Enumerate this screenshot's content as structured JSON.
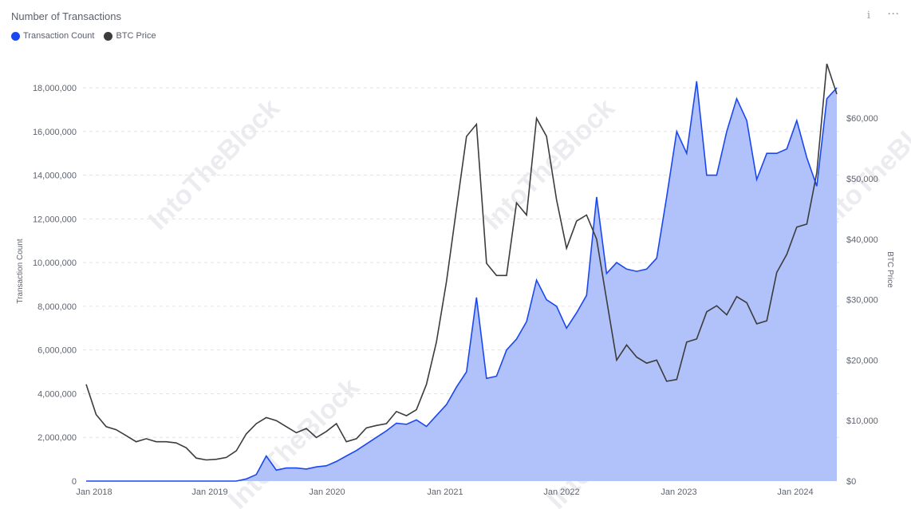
{
  "header": {
    "title": "Number of Transactions",
    "info_icon": "info-icon",
    "menu_icon": "more-horizontal-icon"
  },
  "legend": [
    {
      "label": "Transaction Count",
      "color": "#1a47f0"
    },
    {
      "label": "BTC Price",
      "color": "#3c3c3c"
    }
  ],
  "watermark": "IntoTheBlock",
  "colors": {
    "tx_line": "#1a47f0",
    "tx_fill": "#b1c1fa",
    "price_line": "#3c3c3c",
    "grid": "#e3e3e8"
  },
  "chart_data": {
    "type": "area+line",
    "title": "Number of Transactions",
    "xlabel": "",
    "ylabel_left": "Transaction Count",
    "ylabel_right": "BTC Price",
    "ylim_left": [
      0,
      18000000
    ],
    "ylim_right": [
      0,
      65000
    ],
    "yticks_left": [
      "0",
      "2,000,000",
      "4,000,000",
      "6,000,000",
      "8,000,000",
      "10,000,000",
      "12,000,000",
      "14,000,000",
      "16,000,000",
      "18,000,000"
    ],
    "yticks_right": [
      "$0",
      "$10,000",
      "$20,000",
      "$30,000",
      "$40,000",
      "$50,000",
      "$60,000"
    ],
    "xticks": [
      "Jan 2018",
      "Jan 2019",
      "Jan 2020",
      "Jan 2021",
      "Jan 2022",
      "Jan 2023",
      "Jan 2024"
    ],
    "grid": true,
    "legend_position": "top-left",
    "x": [
      "2018-01",
      "2018-02",
      "2018-03",
      "2018-04",
      "2018-05",
      "2018-06",
      "2018-07",
      "2018-08",
      "2018-09",
      "2018-10",
      "2018-11",
      "2018-12",
      "2019-01",
      "2019-02",
      "2019-03",
      "2019-04",
      "2019-05",
      "2019-06",
      "2019-07",
      "2019-08",
      "2019-09",
      "2019-10",
      "2019-11",
      "2019-12",
      "2020-01",
      "2020-02",
      "2020-03",
      "2020-04",
      "2020-05",
      "2020-06",
      "2020-07",
      "2020-08",
      "2020-09",
      "2020-10",
      "2020-11",
      "2020-12",
      "2021-01",
      "2021-02",
      "2021-03",
      "2021-04",
      "2021-05",
      "2021-06",
      "2021-07",
      "2021-08",
      "2021-09",
      "2021-10",
      "2021-11",
      "2021-12",
      "2022-01",
      "2022-02",
      "2022-03",
      "2022-04",
      "2022-05",
      "2022-06",
      "2022-07",
      "2022-08",
      "2022-09",
      "2022-10",
      "2022-11",
      "2022-12",
      "2023-01",
      "2023-02",
      "2023-03",
      "2023-04",
      "2023-05",
      "2023-06",
      "2023-07",
      "2023-08",
      "2023-09",
      "2023-10",
      "2023-11",
      "2023-12",
      "2024-01",
      "2024-02",
      "2024-03",
      "2024-04"
    ],
    "series": [
      {
        "name": "Transaction Count",
        "axis": "left",
        "style": "area",
        "values": [
          0,
          0,
          0,
          0,
          0,
          0,
          0,
          0,
          0,
          0,
          0,
          0,
          0,
          0,
          0,
          0,
          100000,
          300000,
          1150000,
          500000,
          600000,
          600000,
          550000,
          650000,
          700000,
          900000,
          1150000,
          1400000,
          1700000,
          2000000,
          2300000,
          2650000,
          2600000,
          2800000,
          2500000,
          3000000,
          3500000,
          4300000,
          5000000,
          8400000,
          4700000,
          4800000,
          6000000,
          6500000,
          7300000,
          9200000,
          8300000,
          8000000,
          7000000,
          7700000,
          8500000,
          13000000,
          9500000,
          10000000,
          9700000,
          9600000,
          9700000,
          10200000,
          13000000,
          16000000,
          15000000,
          18300000,
          14000000,
          14000000,
          16000000,
          17500000,
          16500000,
          13800000,
          15000000,
          15000000,
          15200000,
          16500000,
          14800000,
          13500000,
          17500000,
          18000000
        ]
      },
      {
        "name": "BTC Price",
        "axis": "right",
        "style": "line",
        "values": [
          16000,
          11000,
          9000,
          8500,
          7500,
          6500,
          7000,
          6500,
          6500,
          6300,
          5500,
          3800,
          3500,
          3600,
          3900,
          5000,
          7800,
          9500,
          10500,
          10000,
          9000,
          8000,
          8700,
          7200,
          8200,
          9500,
          6500,
          7000,
          8800,
          9200,
          9500,
          11500,
          10800,
          11800,
          16000,
          23000,
          33000,
          45000,
          57000,
          59000,
          36000,
          34000,
          34000,
          46000,
          44000,
          60000,
          57000,
          46500,
          38500,
          43000,
          44000,
          40000,
          30000,
          20000,
          22500,
          20500,
          19500,
          20000,
          16500,
          16800,
          23000,
          23500,
          28000,
          29000,
          27500,
          30500,
          29500,
          26000,
          26500,
          34500,
          37500,
          42000,
          42500,
          51000,
          69000,
          64000
        ]
      }
    ]
  },
  "x_axis_labels": [
    "Jan 2018",
    "Jan 2019",
    "Jan 2020",
    "Jan 2021",
    "Jan 2022",
    "Jan 2023",
    "Jan 2024"
  ]
}
